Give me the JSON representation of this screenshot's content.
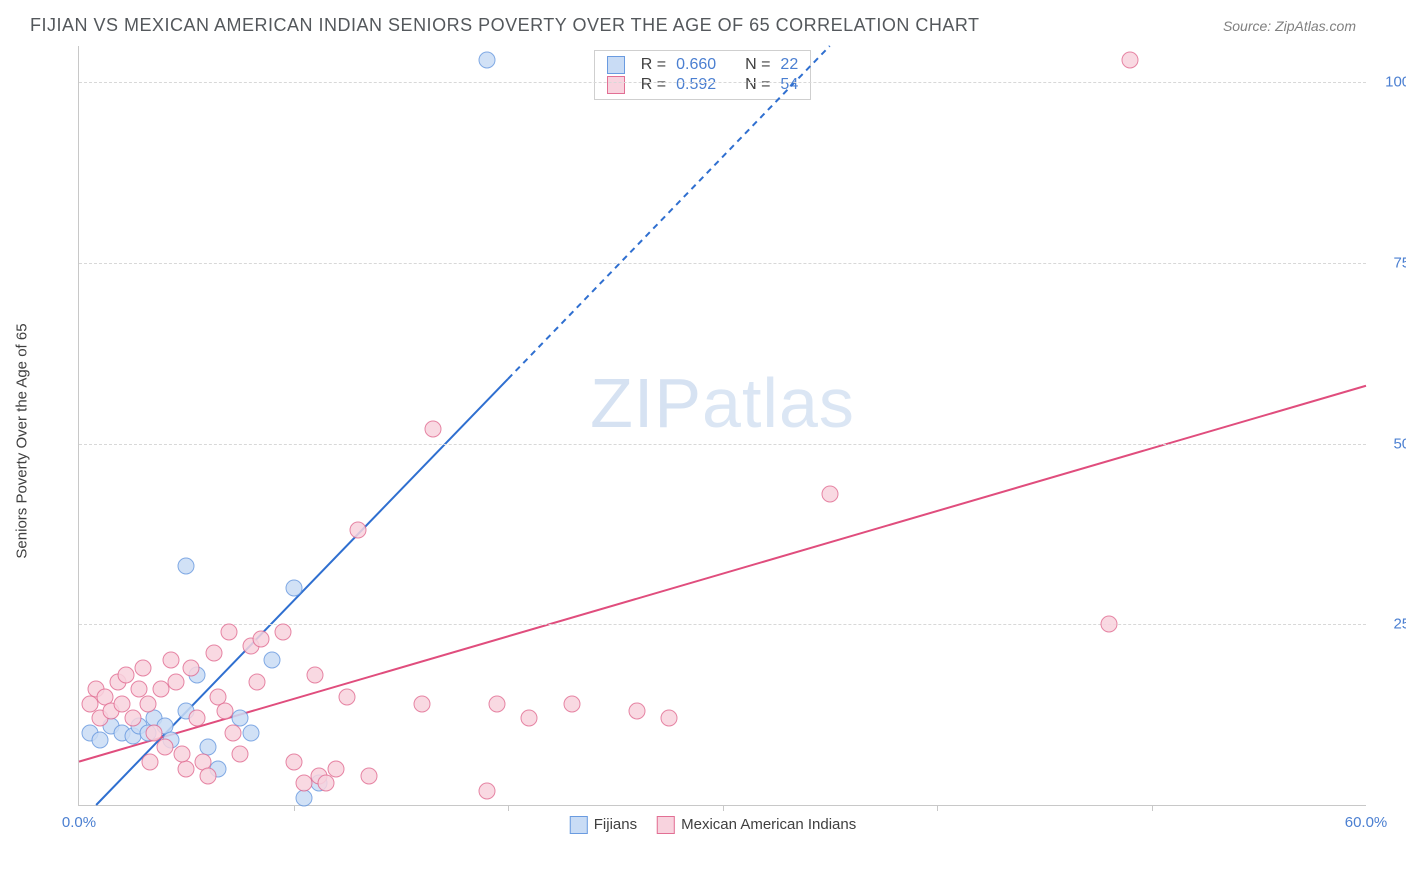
{
  "title": "FIJIAN VS MEXICAN AMERICAN INDIAN SENIORS POVERTY OVER THE AGE OF 65 CORRELATION CHART",
  "source_label": "Source: ",
  "source_name": "ZipAtlas.com",
  "y_axis_label": "Seniors Poverty Over the Age of 65",
  "watermark_a": "ZIP",
  "watermark_b": "atlas",
  "chart": {
    "type": "scatter",
    "xlim": [
      0,
      60
    ],
    "ylim": [
      0,
      105
    ],
    "x_ticks": [
      0,
      60
    ],
    "x_tick_labels": [
      "0.0%",
      "60.0%"
    ],
    "x_minor_ticks": [
      10,
      20,
      30,
      40,
      50
    ],
    "y_ticks": [
      25,
      50,
      75,
      100
    ],
    "y_tick_labels": [
      "25.0%",
      "50.0%",
      "75.0%",
      "100.0%"
    ],
    "background_color": "#ffffff",
    "grid_color": "#d8d8d8",
    "axis_color": "#c8c8c8",
    "tick_label_color": "#4b7fd1",
    "marker_size": 17,
    "marker_opacity": 0.85,
    "series": [
      {
        "name": "Fijians",
        "fill": "#c9dcf5",
        "stroke": "#6a9be0",
        "line_color": "#2f6fd0",
        "line_width": 2,
        "dash_solid_until_x": 20,
        "trend": {
          "x1": 0.8,
          "y1": 0,
          "x2": 35,
          "y2": 105
        },
        "r_value": "0.660",
        "n_value": "22",
        "points": [
          [
            0.5,
            10
          ],
          [
            1,
            9
          ],
          [
            1.5,
            11
          ],
          [
            2,
            10
          ],
          [
            2.5,
            9.5
          ],
          [
            2.8,
            11
          ],
          [
            3.2,
            10
          ],
          [
            3.5,
            12
          ],
          [
            4,
            11
          ],
          [
            4.3,
            9
          ],
          [
            5,
            13
          ],
          [
            5.5,
            18
          ],
          [
            6,
            8
          ],
          [
            6.5,
            5
          ],
          [
            7.5,
            12
          ],
          [
            8,
            10
          ],
          [
            9,
            20
          ],
          [
            5,
            33
          ],
          [
            10,
            30
          ],
          [
            10.5,
            1
          ],
          [
            11.2,
            3
          ],
          [
            19,
            103
          ]
        ]
      },
      {
        "name": "Mexican American Indians",
        "fill": "#f8d3de",
        "stroke": "#e26f94",
        "line_color": "#e04d7d",
        "line_width": 2,
        "trend": {
          "x1": 0,
          "y1": 6,
          "x2": 60,
          "y2": 58
        },
        "r_value": "0.592",
        "n_value": "54",
        "points": [
          [
            0.5,
            14
          ],
          [
            0.8,
            16
          ],
          [
            1,
            12
          ],
          [
            1.2,
            15
          ],
          [
            1.5,
            13
          ],
          [
            1.8,
            17
          ],
          [
            2,
            14
          ],
          [
            2.2,
            18
          ],
          [
            2.5,
            12
          ],
          [
            2.8,
            16
          ],
          [
            3,
            19
          ],
          [
            3.2,
            14
          ],
          [
            3.5,
            10
          ],
          [
            3.8,
            16
          ],
          [
            4,
            8
          ],
          [
            4.3,
            20
          ],
          [
            4.5,
            17
          ],
          [
            5,
            5
          ],
          [
            5.2,
            19
          ],
          [
            5.5,
            12
          ],
          [
            5.8,
            6
          ],
          [
            6,
            4
          ],
          [
            6.3,
            21
          ],
          [
            6.5,
            15
          ],
          [
            6.8,
            13
          ],
          [
            7,
            24
          ],
          [
            7.5,
            7
          ],
          [
            8,
            22
          ],
          [
            8.3,
            17
          ],
          [
            8.5,
            23
          ],
          [
            9.5,
            24
          ],
          [
            10,
            6
          ],
          [
            10.5,
            3
          ],
          [
            11,
            18
          ],
          [
            11.2,
            4
          ],
          [
            11.5,
            3
          ],
          [
            12,
            5
          ],
          [
            12.5,
            15
          ],
          [
            13,
            38
          ],
          [
            13.5,
            4
          ],
          [
            16,
            14
          ],
          [
            16.5,
            52
          ],
          [
            19,
            2
          ],
          [
            19.5,
            14
          ],
          [
            21,
            12
          ],
          [
            23,
            14
          ],
          [
            26,
            13
          ],
          [
            27.5,
            12
          ],
          [
            35,
            43
          ],
          [
            48,
            25
          ],
          [
            49,
            103
          ],
          [
            4.8,
            7
          ],
          [
            3.3,
            6
          ],
          [
            7.2,
            10
          ]
        ]
      }
    ]
  },
  "stats_labels": {
    "r": "R =",
    "n": "N ="
  },
  "legend_labels": {
    "fijians": "Fijians",
    "mexican": "Mexican American Indians"
  }
}
